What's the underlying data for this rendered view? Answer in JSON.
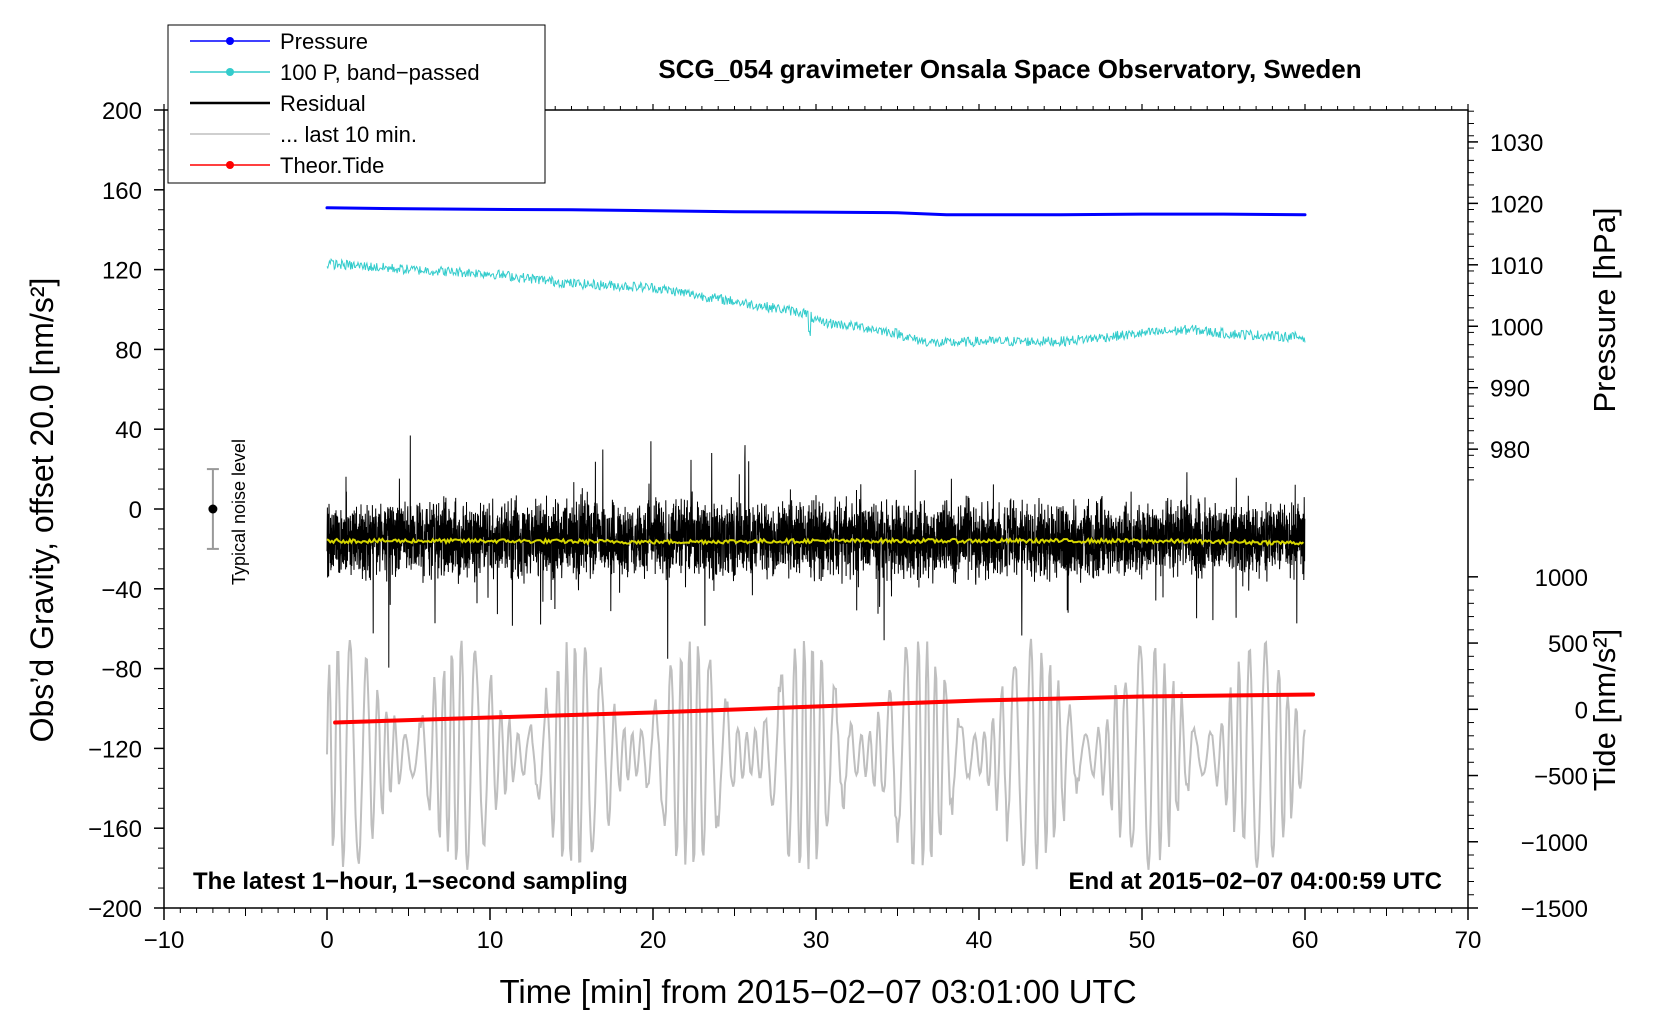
{
  "chart_data": {
    "type": "line",
    "title": "SCG_054 gravimeter Onsala Space Observatory, Sweden",
    "xlabel": "Time [min] from 2015−02−07 03:01:00 UTC",
    "ylabel": "Obs’d Gravity, offset 20.0 [nm/s²]",
    "right_label_pressure": "Pressure [hPa]",
    "right_label_tide": "Tide [nm/s²]",
    "note_left": "The latest 1−hour, 1−second sampling",
    "note_right": "End at 2015−02−07 04:00:59 UTC",
    "noise_label": "Typical noise level",
    "xlim": [
      -10,
      70
    ],
    "ylim": [
      -200,
      200
    ],
    "x_ticks": [
      -10,
      0,
      10,
      20,
      30,
      40,
      50,
      60,
      70
    ],
    "x_tick_labels": [
      "−10",
      "0",
      "10",
      "20",
      "30",
      "40",
      "50",
      "60",
      "70"
    ],
    "y_ticks": [
      -200,
      -160,
      -120,
      -80,
      -40,
      0,
      40,
      80,
      120,
      160,
      200
    ],
    "y_tick_labels": [
      "−200",
      "−160",
      "−120",
      "−80",
      "−40",
      "0",
      "40",
      "80",
      "120",
      "160",
      "200"
    ],
    "pressure_axis": {
      "ticks": [
        980,
        990,
        1000,
        1010,
        1020,
        1030
      ],
      "tick_labels": [
        "980",
        "990",
        "1000",
        "1010",
        "1020",
        "1030"
      ],
      "map_to_left": [
        [
          980,
          30
        ],
        [
          1030,
          184
        ]
      ]
    },
    "tide_axis": {
      "ticks": [
        -1500,
        -1000,
        -500,
        0,
        500,
        1000
      ],
      "tick_labels": [
        "−1500",
        "−1000",
        "−500",
        "0",
        "500",
        "1000"
      ],
      "map_to_left": [
        [
          -1500,
          -200
        ],
        [
          1000,
          -34
        ]
      ]
    },
    "noise_bar": {
      "x": -7,
      "center": 0,
      "half_range": 20
    },
    "legend": [
      {
        "label": "Pressure",
        "color": "#0000ff",
        "marker": true
      },
      {
        "label": "100 P, band−passed",
        "color": "#33cccc",
        "marker": true
      },
      {
        "label": "Residual",
        "color": "#000000",
        "marker": false
      },
      {
        "label": "... last 10 min.",
        "color": "#bfbfbf",
        "marker": false
      },
      {
        "label": "Theor.Tide",
        "color": "#ff0000",
        "marker": true
      }
    ],
    "series": [
      {
        "name": "Pressure",
        "color": "#0000ff",
        "width": 3,
        "x": [
          0,
          5,
          10,
          15,
          20,
          25,
          30,
          35,
          38,
          40,
          45,
          50,
          55,
          60
        ],
        "y": [
          151,
          150.5,
          150.2,
          150,
          149.5,
          149,
          148.8,
          148.5,
          147.5,
          147.5,
          147.5,
          147.8,
          147.8,
          147.5
        ]
      },
      {
        "name": "100 P, band−passed",
        "color": "#33cccc",
        "width": 1,
        "x": [
          0,
          5,
          10,
          15,
          20,
          25,
          28,
          29.5,
          30,
          33,
          35,
          36,
          37.5,
          40,
          45,
          50,
          53,
          55,
          60
        ],
        "y": [
          123,
          120,
          118,
          113,
          111,
          104,
          100,
          98,
          94,
          91,
          88,
          85,
          83,
          84,
          84,
          88,
          90,
          88,
          86
        ],
        "noise_amp": 2.5
      },
      {
        "name": "Residual",
        "color": "#000000",
        "width": 1,
        "x_start": 0,
        "x_end": 60,
        "center": -15,
        "amp_typical": 22,
        "amp_max": 70
      },
      {
        "name": "Residual (smoothed)",
        "color": "#d6d600",
        "width": 2,
        "x": [
          0,
          10,
          20,
          30,
          40,
          50,
          60
        ],
        "y": [
          -16,
          -16,
          -16.5,
          -16,
          -16,
          -16,
          -17
        ]
      },
      {
        "name": "... last 10 min.",
        "color": "#bfbfbf",
        "width": 2,
        "x_start": 0,
        "x_end": 60,
        "center": -123,
        "amp_min": 10,
        "amp_max": 58
      },
      {
        "name": "Theor.Tide",
        "color": "#ff0000",
        "width": 4,
        "x": [
          0.5,
          10,
          20,
          30,
          40,
          50,
          60.5
        ],
        "y": [
          -107,
          -104.5,
          -102,
          -99,
          -96,
          -94,
          -93
        ]
      }
    ]
  }
}
